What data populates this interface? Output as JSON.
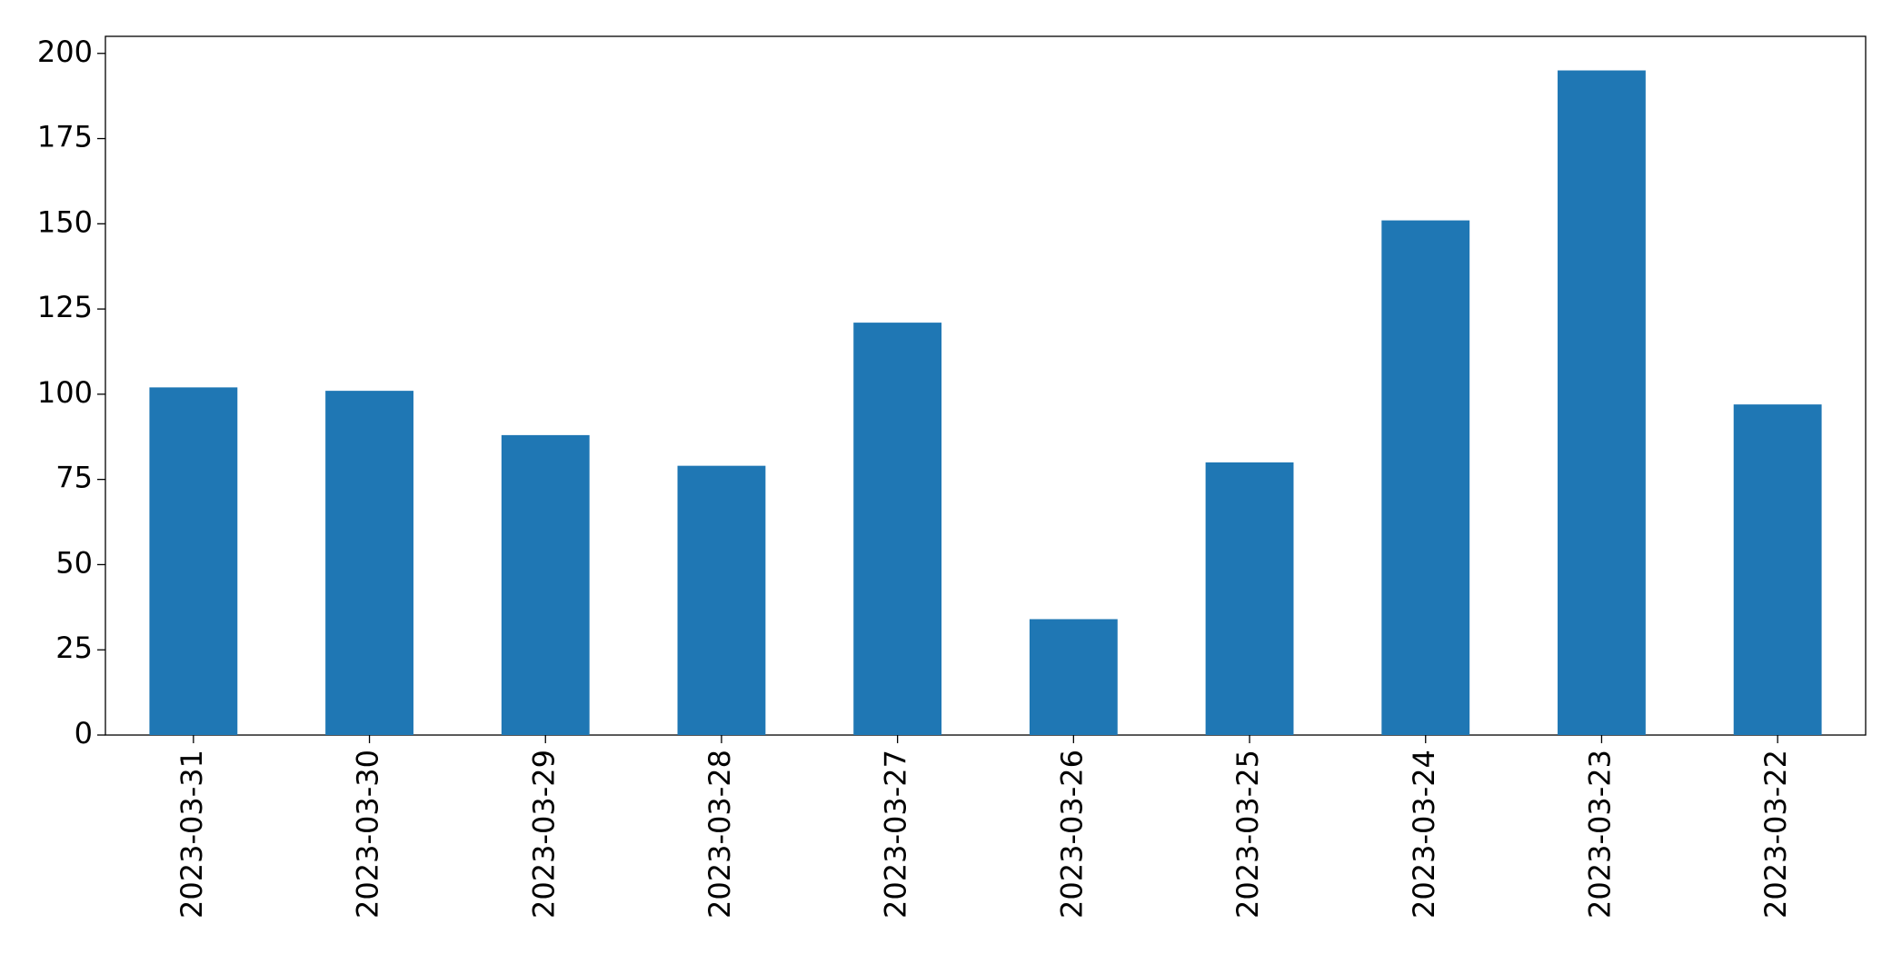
{
  "chart_data": {
    "type": "bar",
    "categories": [
      "2023-03-31",
      "2023-03-30",
      "2023-03-29",
      "2023-03-28",
      "2023-03-27",
      "2023-03-26",
      "2023-03-25",
      "2023-03-24",
      "2023-03-23",
      "2023-03-22"
    ],
    "values": [
      102,
      101,
      88,
      79,
      121,
      34,
      80,
      151,
      195,
      97
    ],
    "color": "#1f77b4",
    "ylim": [
      0,
      205
    ],
    "yticks": [
      0,
      25,
      50,
      75,
      100,
      125,
      150,
      175,
      200
    ],
    "grid": false
  }
}
